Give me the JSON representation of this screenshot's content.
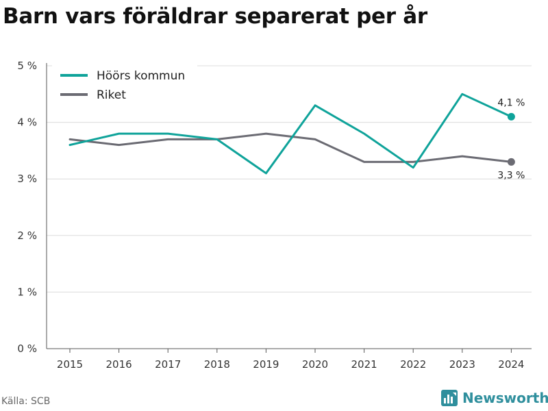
{
  "title": "Barn vars föräldrar separerat per år",
  "source": "Källa: SCB",
  "brand": {
    "name": "Newsworthy",
    "icon": "bar-chart-logo-icon",
    "color": "#2f8f9d"
  },
  "chart_data": {
    "type": "line",
    "title": "Barn vars föräldrar separerat per år",
    "x": [
      "2015",
      "2016",
      "2017",
      "2018",
      "2019",
      "2020",
      "2021",
      "2022",
      "2023",
      "2024"
    ],
    "ylim": [
      0,
      5
    ],
    "yticks": [
      0,
      1,
      2,
      3,
      4,
      5
    ],
    "ytick_labels": [
      "0 %",
      "1 %",
      "2 %",
      "3 %",
      "4 %",
      "5 %"
    ],
    "grid": true,
    "legend_placement": "top-left",
    "series": [
      {
        "name": "Höörs kommun",
        "color": "#0fa39a",
        "values": [
          3.6,
          3.8,
          3.8,
          3.7,
          3.1,
          4.3,
          3.8,
          3.2,
          4.5,
          4.1
        ],
        "end_label": "4,1 %"
      },
      {
        "name": "Riket",
        "color": "#6b6b73",
        "values": [
          3.7,
          3.6,
          3.7,
          3.7,
          3.8,
          3.7,
          3.3,
          3.3,
          3.4,
          3.3
        ],
        "end_label": "3,3 %"
      }
    ]
  }
}
